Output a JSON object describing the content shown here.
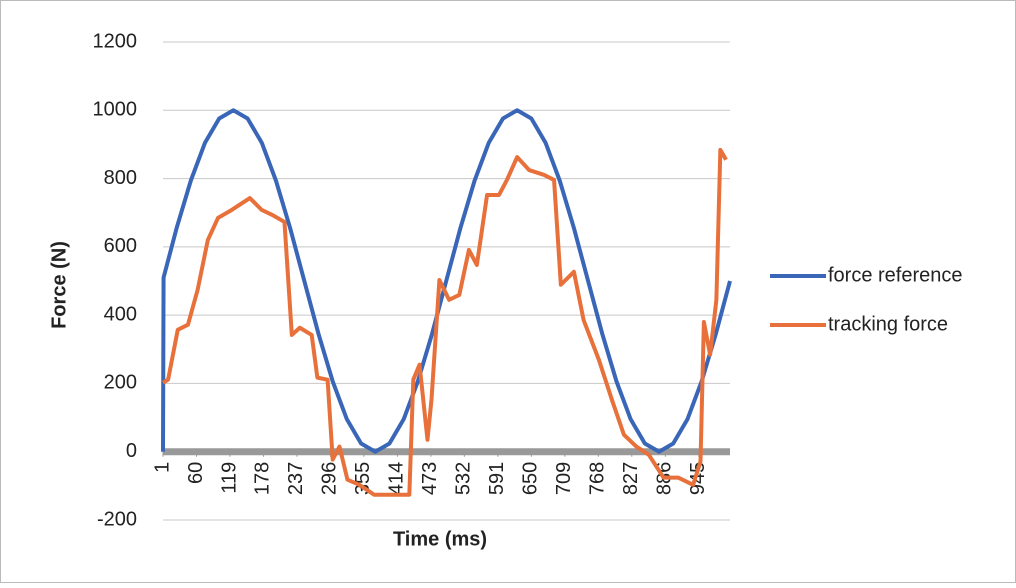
{
  "chart_data": {
    "type": "line",
    "x_label": "Time (ms)",
    "y_label": "Force (N)",
    "xlim": [
      1,
      1000
    ],
    "ylim": [
      -200,
      1200
    ],
    "xticks": [
      1,
      60,
      119,
      178,
      237,
      296,
      355,
      414,
      473,
      532,
      591,
      650,
      709,
      768,
      827,
      886,
      945
    ],
    "yticks": [
      -200,
      0,
      200,
      400,
      600,
      800,
      1000,
      1200
    ],
    "grid": true,
    "legend": "right",
    "series": [
      {
        "name": "force reference",
        "color": "#3a66b8",
        "x": [
          1,
          2,
          25,
          50,
          75,
          100,
          125,
          150,
          175,
          200,
          225,
          250,
          275,
          300,
          325,
          350,
          375,
          400,
          425,
          450,
          475,
          500,
          525,
          550,
          575,
          600,
          625,
          650,
          675,
          700,
          725,
          750,
          775,
          800,
          825,
          850,
          875,
          900,
          925,
          950,
          975,
          1000
        ],
        "values": [
          0,
          510,
          655,
          794,
          905,
          976,
          1000,
          976,
          905,
          794,
          655,
          500,
          345,
          206,
          95,
          24,
          0,
          24,
          95,
          206,
          345,
          500,
          655,
          794,
          905,
          976,
          1000,
          976,
          905,
          794,
          655,
          500,
          345,
          206,
          95,
          24,
          0,
          24,
          95,
          206,
          345,
          500
        ]
      },
      {
        "name": "tracking force",
        "color": "#e8703a",
        "x": [
          1,
          10,
          27,
          45,
          62,
          80,
          98,
          122,
          154,
          175,
          193,
          215,
          228,
          242,
          263,
          273,
          291,
          300,
          312,
          326,
          347,
          373,
          409,
          435,
          442,
          453,
          467,
          474,
          488,
          505,
          523,
          540,
          554,
          572,
          593,
          607,
          625,
          646,
          672,
          690,
          702,
          725,
          742,
          769,
          792,
          813,
          835,
          857,
          883,
          909,
          935,
          948,
          954,
          965,
          976,
          983,
          993
        ],
        "values": [
          202,
          211,
          357,
          372,
          474,
          620,
          685,
          708,
          743,
          708,
          694,
          673,
          342,
          363,
          342,
          217,
          211,
          -23,
          15,
          -82,
          -97,
          -126,
          -126,
          -126,
          211,
          255,
          35,
          152,
          503,
          445,
          459,
          591,
          547,
          752,
          752,
          796,
          863,
          825,
          811,
          796,
          489,
          527,
          386,
          269,
          152,
          50,
          15,
          -9,
          -76,
          -76,
          -97,
          -29,
          380,
          284,
          445,
          884,
          855
        ]
      }
    ]
  }
}
